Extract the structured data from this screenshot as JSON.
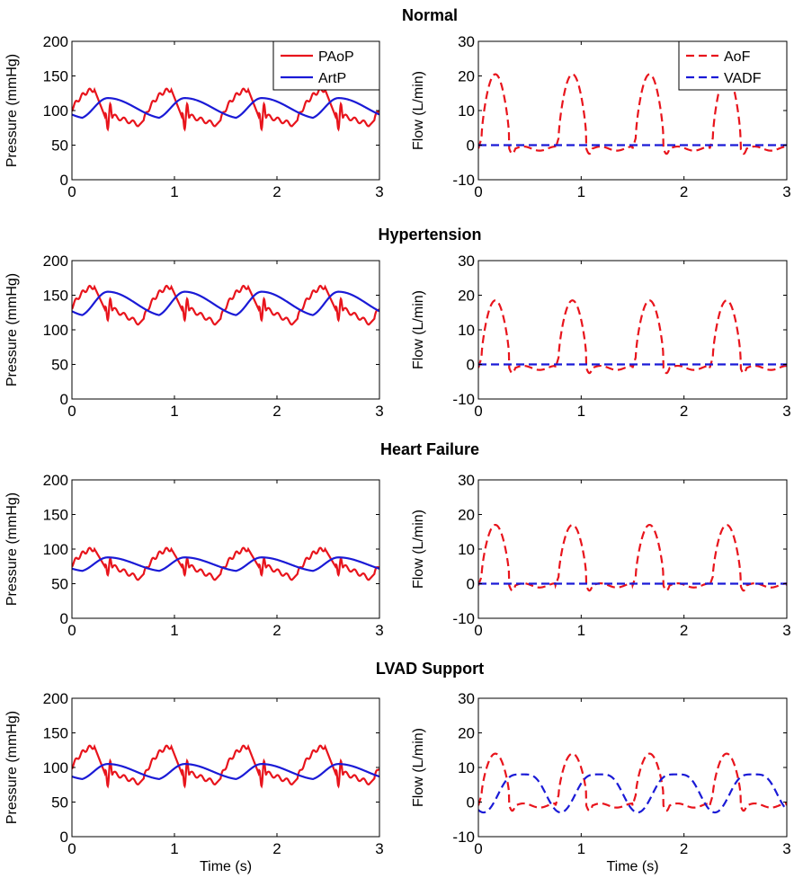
{
  "chart_data": [
    {
      "title": "Normal",
      "pressure": {
        "type": "line",
        "ylabel": "Pressure (mmHg)",
        "xlabel": "",
        "xlim": [
          0,
          3
        ],
        "ylim": [
          0,
          200
        ],
        "xticks": [
          "0",
          "1",
          "2",
          "3"
        ],
        "yticks": [
          "0",
          "50",
          "100",
          "150",
          "200"
        ],
        "legend": "top-right",
        "series": [
          {
            "name": "PAoP",
            "color": "#e8141c",
            "style": "solid",
            "diastolic": 80,
            "systolic": 130,
            "notch": 92
          },
          {
            "name": "ArtP",
            "color": "#1a1ad6",
            "style": "solid",
            "min": 80,
            "max": 118
          }
        ]
      },
      "flow": {
        "type": "line",
        "ylabel": "Flow (L/min)",
        "xlabel": "",
        "xlim": [
          0,
          3
        ],
        "ylim": [
          -10,
          30
        ],
        "xticks": [
          "0",
          "1",
          "2",
          "3"
        ],
        "yticks": [
          "-10",
          "0",
          "10",
          "20",
          "30"
        ],
        "legend": "top-right",
        "series": [
          {
            "name": "AoF",
            "color": "#e8141c",
            "style": "dashed",
            "peak": 20.5,
            "baseline": -1
          },
          {
            "name": "VADF",
            "color": "#1a1ad6",
            "style": "dashed",
            "level": 0
          }
        ]
      }
    },
    {
      "title": "Hypertension",
      "pressure": {
        "type": "line",
        "ylabel": "Pressure (mmHg)",
        "xlabel": "",
        "xlim": [
          0,
          3
        ],
        "ylim": [
          0,
          200
        ],
        "xticks": [
          "0",
          "1",
          "2",
          "3"
        ],
        "yticks": [
          "0",
          "50",
          "100",
          "150",
          "200"
        ],
        "series": [
          {
            "name": "PAoP",
            "color": "#e8141c",
            "style": "solid",
            "diastolic": 110,
            "systolic": 162,
            "notch": 130
          },
          {
            "name": "ArtP",
            "color": "#1a1ad6",
            "style": "solid",
            "min": 110,
            "max": 155
          }
        ]
      },
      "flow": {
        "type": "line",
        "ylabel": "Flow (L/min)",
        "xlabel": "",
        "xlim": [
          0,
          3
        ],
        "ylim": [
          -10,
          30
        ],
        "xticks": [
          "0",
          "1",
          "2",
          "3"
        ],
        "yticks": [
          "-10",
          "0",
          "10",
          "20",
          "30"
        ],
        "series": [
          {
            "name": "AoF",
            "color": "#e8141c",
            "style": "dashed",
            "peak": 18.5,
            "baseline": -1
          },
          {
            "name": "VADF",
            "color": "#1a1ad6",
            "style": "dashed",
            "level": 0
          }
        ]
      }
    },
    {
      "title": "Heart Failure",
      "pressure": {
        "type": "line",
        "ylabel": "Pressure (mmHg)",
        "xlabel": "",
        "xlim": [
          0,
          3
        ],
        "ylim": [
          0,
          200
        ],
        "xticks": [
          "0",
          "1",
          "2",
          "3"
        ],
        "yticks": [
          "0",
          "50",
          "100",
          "150",
          "200"
        ],
        "series": [
          {
            "name": "PAoP",
            "color": "#e8141c",
            "style": "solid",
            "diastolic": 58,
            "systolic": 100,
            "notch": 75
          },
          {
            "name": "ArtP",
            "color": "#1a1ad6",
            "style": "solid",
            "min": 62,
            "max": 88
          }
        ]
      },
      "flow": {
        "type": "line",
        "ylabel": "Flow (L/min)",
        "xlabel": "",
        "xlim": [
          0,
          3
        ],
        "ylim": [
          -10,
          30
        ],
        "xticks": [
          "0",
          "1",
          "2",
          "3"
        ],
        "yticks": [
          "-10",
          "0",
          "10",
          "20",
          "30"
        ],
        "series": [
          {
            "name": "AoF",
            "color": "#e8141c",
            "style": "dashed",
            "peak": 17,
            "baseline": -0.5
          },
          {
            "name": "VADF",
            "color": "#1a1ad6",
            "style": "dashed",
            "level": 0
          }
        ]
      }
    },
    {
      "title": "LVAD Support",
      "pressure": {
        "type": "line",
        "ylabel": "Pressure (mmHg)",
        "xlabel": "Time (s)",
        "xlim": [
          0,
          3
        ],
        "ylim": [
          0,
          200
        ],
        "xticks": [
          "0",
          "1",
          "2",
          "3"
        ],
        "yticks": [
          "0",
          "50",
          "100",
          "150",
          "200"
        ],
        "series": [
          {
            "name": "PAoP",
            "color": "#e8141c",
            "style": "solid",
            "diastolic": 78,
            "systolic": 130,
            "notch": 92
          },
          {
            "name": "ArtP",
            "color": "#1a1ad6",
            "style": "solid",
            "min": 76,
            "max": 105
          }
        ]
      },
      "flow": {
        "type": "line",
        "ylabel": "Flow (L/min)",
        "xlabel": "Time (s)",
        "xlim": [
          0,
          3
        ],
        "ylim": [
          -10,
          30
        ],
        "xticks": [
          "0",
          "1",
          "2",
          "3"
        ],
        "yticks": [
          "-10",
          "0",
          "10",
          "20",
          "30"
        ],
        "series": [
          {
            "name": "AoF",
            "color": "#e8141c",
            "style": "dashed",
            "peak": 14,
            "baseline": -1
          },
          {
            "name": "VADF",
            "color": "#1a1ad6",
            "style": "dashed",
            "min": -3,
            "max": 8
          }
        ]
      }
    }
  ]
}
